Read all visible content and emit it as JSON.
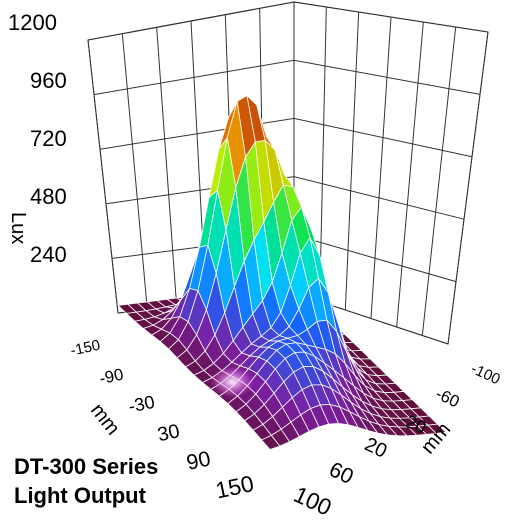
{
  "chart_data": {
    "type": "surface",
    "zlabel": "Lux",
    "zticks": [
      "1200",
      "960",
      "720",
      "480",
      "240"
    ],
    "zlim": [
      0,
      1200
    ],
    "left_axis_label": "mm",
    "left_axis_ticks": [
      "-150",
      "-90",
      "-30",
      "30",
      "90",
      "150"
    ],
    "right_axis_label": "mm",
    "right_axis_ticks": [
      "-100",
      "-60",
      "-20",
      "20",
      "60",
      "100"
    ],
    "peak_lux": 1180,
    "grid": true,
    "colormap": [
      "#5a0a22",
      "#7b1fa2",
      "#1565ff",
      "#00e0ff",
      "#00e060",
      "#b8f000",
      "#f08000",
      "#a02010"
    ]
  },
  "caption": {
    "line1": "DT-300 Series",
    "line2": "Light Output"
  }
}
